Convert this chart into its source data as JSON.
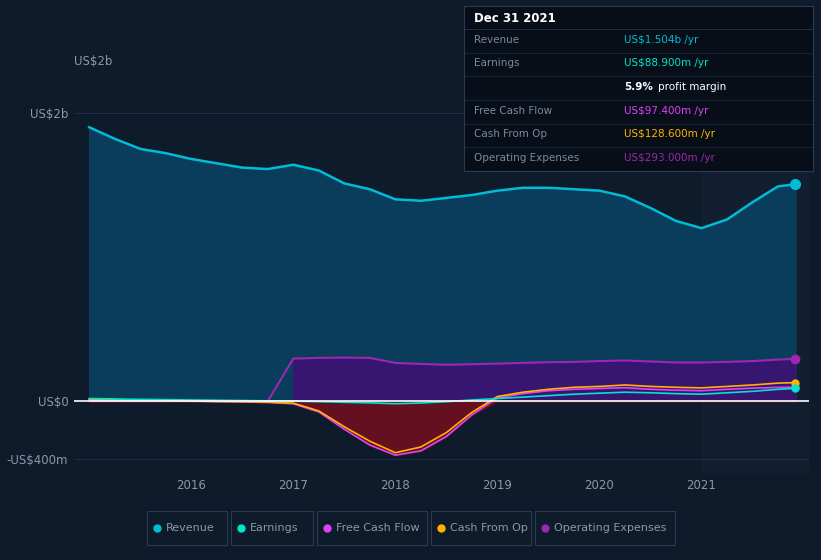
{
  "bg_color": "#0d1b2a",
  "plot_bg_color": "#0d1b2a",
  "text_color": "#8899aa",
  "x_years": [
    2015.0,
    2015.25,
    2015.5,
    2015.75,
    2016.0,
    2016.25,
    2016.5,
    2016.75,
    2017.0,
    2017.25,
    2017.5,
    2017.75,
    2018.0,
    2018.25,
    2018.5,
    2018.75,
    2019.0,
    2019.25,
    2019.5,
    2019.75,
    2020.0,
    2020.25,
    2020.5,
    2020.75,
    2021.0,
    2021.25,
    2021.5,
    2021.75,
    2021.92
  ],
  "revenue": [
    1900,
    1820,
    1750,
    1720,
    1680,
    1650,
    1620,
    1610,
    1640,
    1600,
    1510,
    1470,
    1400,
    1390,
    1410,
    1430,
    1460,
    1480,
    1480,
    1470,
    1460,
    1420,
    1340,
    1250,
    1200,
    1260,
    1380,
    1490,
    1504
  ],
  "operating_expenses": [
    0,
    0,
    0,
    0,
    0,
    0,
    0,
    0,
    295,
    300,
    302,
    300,
    265,
    258,
    252,
    256,
    260,
    265,
    270,
    272,
    278,
    282,
    275,
    268,
    268,
    272,
    278,
    288,
    293
  ],
  "free_cash_flow": [
    8,
    5,
    3,
    1,
    0,
    -3,
    -6,
    -9,
    -18,
    -75,
    -195,
    -305,
    -375,
    -345,
    -245,
    -95,
    22,
    52,
    72,
    82,
    88,
    93,
    82,
    76,
    72,
    82,
    90,
    95,
    97
  ],
  "cash_from_op": [
    12,
    10,
    7,
    4,
    1,
    -2,
    -4,
    -7,
    -14,
    -68,
    -178,
    -278,
    -358,
    -318,
    -218,
    -78,
    32,
    62,
    82,
    96,
    102,
    112,
    102,
    96,
    92,
    102,
    112,
    125,
    128.6
  ],
  "earnings": [
    18,
    15,
    12,
    10,
    8,
    6,
    4,
    2,
    0,
    -4,
    -8,
    -12,
    -18,
    -13,
    -4,
    8,
    18,
    28,
    38,
    48,
    55,
    62,
    58,
    52,
    48,
    58,
    68,
    82,
    88.9
  ],
  "revenue_color": "#00bcd4",
  "revenue_fill": "#0a3d5c",
  "earnings_color": "#00e5cc",
  "free_cash_flow_color": "#e040fb",
  "cash_from_op_color": "#ffb300",
  "operating_expenses_color": "#9c27b0",
  "operating_expenses_fill": "#3d1275",
  "negative_fill": "#6b1020",
  "ylim": [
    -500,
    2200
  ],
  "yticks": [
    -400,
    0,
    2000
  ],
  "ytick_labels": [
    "-US$400m",
    "US$0",
    "US$2b"
  ],
  "xtick_years": [
    2016,
    2017,
    2018,
    2019,
    2020,
    2021
  ],
  "highlight_x_start": 2021.0,
  "highlight_color": "#111f30",
  "tooltip": {
    "title": "Dec 31 2021",
    "rows": [
      {
        "label": "Revenue",
        "value": "US$1.504b /yr",
        "value_color": "#00bcd4"
      },
      {
        "label": "Earnings",
        "value": "US$88.900m /yr",
        "value_color": "#00e5cc"
      },
      {
        "label": "",
        "value": "5.9% profit margin",
        "value_color": "#ffffff"
      },
      {
        "label": "Free Cash Flow",
        "value": "US$97.400m /yr",
        "value_color": "#e040fb"
      },
      {
        "label": "Cash From Op",
        "value": "US$128.600m /yr",
        "value_color": "#ffb300"
      },
      {
        "label": "Operating Expenses",
        "value": "US$293.000m /yr",
        "value_color": "#9c27b0"
      }
    ]
  },
  "legend": [
    {
      "label": "Revenue",
      "color": "#00bcd4"
    },
    {
      "label": "Earnings",
      "color": "#00e5cc"
    },
    {
      "label": "Free Cash Flow",
      "color": "#e040fb"
    },
    {
      "label": "Cash From Op",
      "color": "#ffb300"
    },
    {
      "label": "Operating Expenses",
      "color": "#9c27b0"
    }
  ]
}
